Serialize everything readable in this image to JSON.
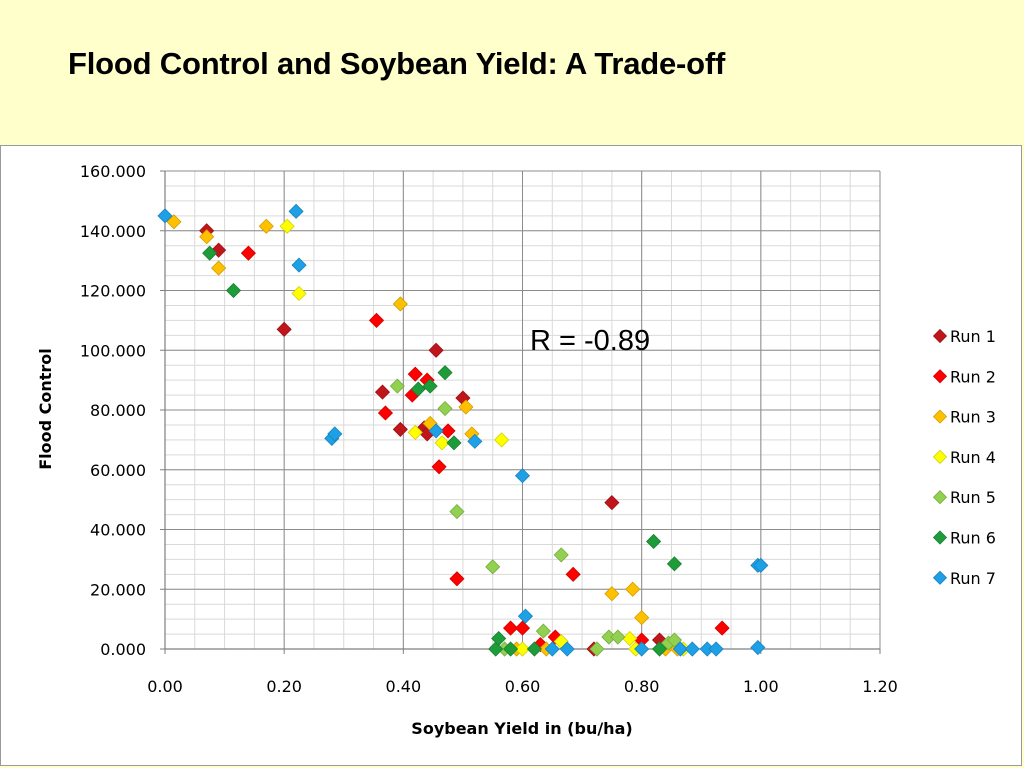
{
  "slide": {
    "title": "Flood Control and Soybean Yield: A Trade-off"
  },
  "chart_data": {
    "type": "scatter",
    "title": "",
    "xlabel": "Soybean Yield in (bu/ha)",
    "ylabel": "Flood Control",
    "xlim": [
      0,
      1.2
    ],
    "ylim": [
      0,
      160
    ],
    "x_ticks": [
      0,
      0.2,
      0.4,
      0.6,
      0.8,
      1.0,
      1.2
    ],
    "x_tick_labels": [
      "0.00",
      "0.20",
      "0.40",
      "0.60",
      "0.80",
      "1.00",
      "1.20"
    ],
    "y_ticks": [
      0,
      20,
      40,
      60,
      80,
      100,
      120,
      140,
      160
    ],
    "y_tick_labels": [
      "0.000",
      "20.000",
      "40.000",
      "60.000",
      "80.000",
      "100.000",
      "120.000",
      "140.000",
      "160.000"
    ],
    "grid": true,
    "legend_position": "right",
    "marker": "diamond",
    "annotation": "R = -0.89",
    "series": [
      {
        "name": "Run 1",
        "color": "#c0151b",
        "points": [
          [
            0.07,
            140
          ],
          [
            0.09,
            133.5
          ],
          [
            0.2,
            107
          ],
          [
            0.365,
            86
          ],
          [
            0.395,
            73.5
          ],
          [
            0.435,
            74
          ],
          [
            0.44,
            72
          ],
          [
            0.455,
            100
          ],
          [
            0.5,
            84
          ],
          [
            0.75,
            49
          ],
          [
            0.72,
            0
          ],
          [
            0.83,
            3
          ]
        ]
      },
      {
        "name": "Run 2",
        "color": "#ff0000",
        "points": [
          [
            0.14,
            132.5
          ],
          [
            0.355,
            110
          ],
          [
            0.37,
            79
          ],
          [
            0.415,
            85
          ],
          [
            0.42,
            92
          ],
          [
            0.44,
            90
          ],
          [
            0.46,
            61
          ],
          [
            0.475,
            73
          ],
          [
            0.49,
            23.5
          ],
          [
            0.58,
            7
          ],
          [
            0.6,
            7
          ],
          [
            0.63,
            1.5
          ],
          [
            0.655,
            4
          ],
          [
            0.685,
            25
          ],
          [
            0.8,
            3
          ],
          [
            0.935,
            7
          ]
        ]
      },
      {
        "name": "Run 3",
        "color": "#ffc000",
        "points": [
          [
            0.015,
            143
          ],
          [
            0.07,
            138
          ],
          [
            0.09,
            127.5
          ],
          [
            0.17,
            141.5
          ],
          [
            0.395,
            115.5
          ],
          [
            0.445,
            75.5
          ],
          [
            0.505,
            81
          ],
          [
            0.515,
            72
          ],
          [
            0.59,
            0
          ],
          [
            0.64,
            0
          ],
          [
            0.75,
            18.5
          ],
          [
            0.785,
            20
          ],
          [
            0.8,
            10.5
          ],
          [
            0.84,
            0
          ],
          [
            0.86,
            0
          ]
        ]
      },
      {
        "name": "Run 4",
        "color": "#ffff00",
        "points": [
          [
            0.205,
            141.5
          ],
          [
            0.225,
            119
          ],
          [
            0.42,
            72.5
          ],
          [
            0.465,
            69
          ],
          [
            0.565,
            70
          ],
          [
            0.6,
            0
          ],
          [
            0.665,
            2.5
          ],
          [
            0.78,
            3.5
          ],
          [
            0.79,
            0
          ],
          [
            0.87,
            0
          ]
        ]
      },
      {
        "name": "Run 5",
        "color": "#92d050",
        "points": [
          [
            0.39,
            88
          ],
          [
            0.47,
            80.5
          ],
          [
            0.49,
            46
          ],
          [
            0.55,
            27.5
          ],
          [
            0.57,
            0
          ],
          [
            0.635,
            6
          ],
          [
            0.665,
            31.5
          ],
          [
            0.725,
            0
          ],
          [
            0.745,
            4
          ],
          [
            0.76,
            4
          ],
          [
            0.845,
            2
          ],
          [
            0.855,
            3
          ]
        ]
      },
      {
        "name": "Run 6",
        "color": "#1f9c3a",
        "points": [
          [
            0.075,
            132.5
          ],
          [
            0.115,
            120
          ],
          [
            0.425,
            87
          ],
          [
            0.445,
            88
          ],
          [
            0.47,
            92.5
          ],
          [
            0.485,
            69
          ],
          [
            0.555,
            0
          ],
          [
            0.56,
            3.5
          ],
          [
            0.58,
            0
          ],
          [
            0.62,
            0
          ],
          [
            0.82,
            36
          ],
          [
            0.83,
            0
          ],
          [
            0.855,
            28.5
          ]
        ]
      },
      {
        "name": "Run 7",
        "color": "#1ea0e6",
        "points": [
          [
            0.0,
            145
          ],
          [
            0.22,
            146.5
          ],
          [
            0.225,
            128.5
          ],
          [
            0.28,
            70.5
          ],
          [
            0.285,
            72
          ],
          [
            0.455,
            73
          ],
          [
            0.52,
            69.5
          ],
          [
            0.6,
            58
          ],
          [
            0.605,
            11
          ],
          [
            0.65,
            0
          ],
          [
            0.675,
            0
          ],
          [
            0.8,
            0
          ],
          [
            0.865,
            0
          ],
          [
            0.885,
            0
          ],
          [
            0.91,
            0
          ],
          [
            0.925,
            0
          ],
          [
            0.995,
            0.5
          ],
          [
            0.995,
            28
          ],
          [
            1.0,
            28
          ]
        ]
      }
    ]
  }
}
